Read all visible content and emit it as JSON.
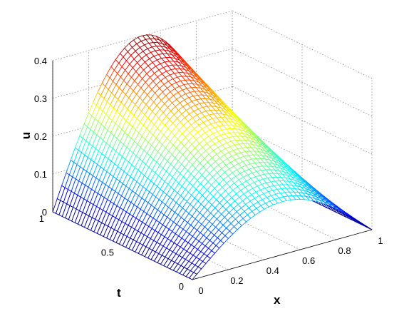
{
  "chart_data": {
    "type": "surface",
    "title": "",
    "xlabel": "x",
    "ylabel": "t",
    "zlabel": "u",
    "xlim": [
      0,
      1
    ],
    "ylim": [
      0,
      1
    ],
    "zlim": [
      0,
      0.4
    ],
    "x_ticks": [
      "0",
      "0.2",
      "0.4",
      "0.6",
      "0.8",
      "1"
    ],
    "y_ticks": [
      "0",
      "0.5",
      "1"
    ],
    "z_ticks": [
      "0",
      "0.1",
      "0.2",
      "0.3",
      "0.4"
    ],
    "grid": true,
    "colormap": "jet",
    "surface": {
      "description_values": "u(x,t) ≈ 0.4·sin(πx)·(0.35 + 0.65·t)",
      "peak": {
        "x": 0.5,
        "t": 1,
        "u": 0.4
      },
      "edge_value": 0,
      "t0_peak": 0.14
    },
    "colors": {
      "low": "#00008f",
      "mid": "#00ffff",
      "high": "#800000"
    }
  }
}
